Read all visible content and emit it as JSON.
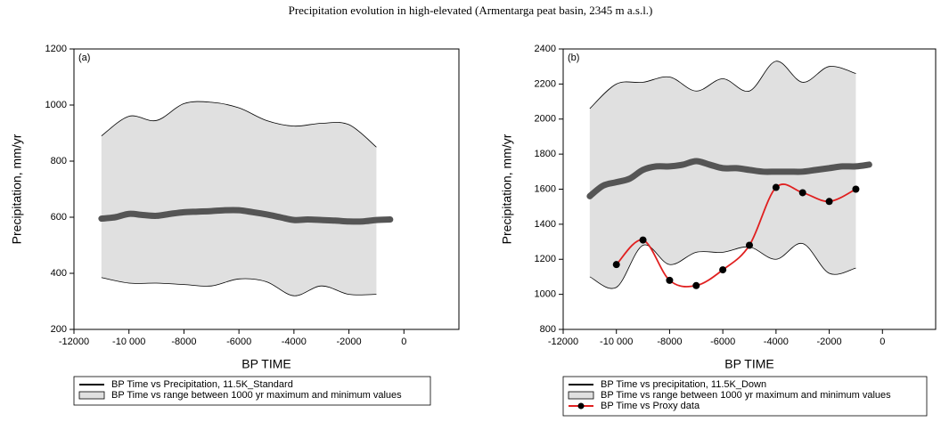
{
  "title": "Precipitation evolution in high-elevated (Armentarga peat basin, 2345 m a.s.l.)",
  "chart_data": [
    {
      "type": "line",
      "panel_label": "(a)",
      "xlabel": "BP TIME",
      "ylabel": "Precipitation, mm/yr",
      "xlim": [
        -12000,
        2000
      ],
      "ylim": [
        200,
        1200
      ],
      "xticks": [
        -12000,
        {
          "value": -10000,
          "label": "-10 000"
        },
        -8000,
        -6000,
        -4000,
        -2000,
        0
      ],
      "yticks": [
        200,
        400,
        600,
        800,
        1000,
        1200
      ],
      "series": [
        {
          "name": "BP Time vs Precipitation, 11.5K_Standard",
          "color": "#555555",
          "x": [
            -11000,
            -10500,
            -10000,
            -9500,
            -9000,
            -8500,
            -8000,
            -7500,
            -7000,
            -6500,
            -6000,
            -5500,
            -5000,
            -4500,
            -4000,
            -3500,
            -3000,
            -2500,
            -2000,
            -1500,
            -1000,
            -500
          ],
          "values": [
            595,
            600,
            612,
            608,
            605,
            612,
            618,
            620,
            622,
            625,
            625,
            618,
            610,
            600,
            590,
            592,
            590,
            588,
            585,
            585,
            590,
            592
          ]
        },
        {
          "name": "BP Time vs range between 1000 yr maximum and minimum values",
          "color": "#e0e0e0",
          "x": [
            -11000,
            -10000,
            -9000,
            -8000,
            -7000,
            -6000,
            -5000,
            -4000,
            -3000,
            -2000,
            -1000
          ],
          "upper": [
            890,
            960,
            945,
            1005,
            1010,
            990,
            945,
            925,
            935,
            930,
            850
          ],
          "lower": [
            385,
            365,
            365,
            360,
            355,
            380,
            370,
            320,
            355,
            325,
            325
          ]
        }
      ]
    },
    {
      "type": "line",
      "panel_label": "(b)",
      "xlabel": "BP TIME",
      "ylabel": "Precipitation, mm/yr",
      "xlim": [
        -12000,
        2000
      ],
      "ylim": [
        800,
        2400
      ],
      "xticks": [
        -12000,
        {
          "value": -10000,
          "label": "-10 000"
        },
        -8000,
        -6000,
        -4000,
        -2000,
        0
      ],
      "yticks": [
        800,
        1000,
        1200,
        1400,
        1600,
        1800,
        2000,
        2200,
        2400
      ],
      "series": [
        {
          "name": "BP Time vs precipitation, 11.5K_Down",
          "color": "#555555",
          "x": [
            -11000,
            -10500,
            -10000,
            -9500,
            -9000,
            -8500,
            -8000,
            -7500,
            -7000,
            -6500,
            -6000,
            -5500,
            -5000,
            -4500,
            -4000,
            -3500,
            -3000,
            -2500,
            -2000,
            -1500,
            -1000,
            -500
          ],
          "values": [
            1560,
            1620,
            1640,
            1660,
            1710,
            1730,
            1730,
            1740,
            1760,
            1740,
            1720,
            1720,
            1710,
            1700,
            1700,
            1700,
            1700,
            1710,
            1720,
            1730,
            1730,
            1740
          ]
        },
        {
          "name": "BP Time vs range between 1000 yr maximum and minimum values",
          "color": "#e0e0e0",
          "x": [
            -11000,
            -10000,
            -9000,
            -8000,
            -7000,
            -6000,
            -5000,
            -4000,
            -3000,
            -2000,
            -1000
          ],
          "upper": [
            2060,
            2200,
            2210,
            2240,
            2160,
            2230,
            2160,
            2330,
            2210,
            2300,
            2260
          ],
          "lower": [
            1100,
            1040,
            1280,
            1170,
            1240,
            1240,
            1270,
            1200,
            1290,
            1120,
            1150
          ]
        },
        {
          "name": "BP Time vs Proxy data",
          "color": "#e02020",
          "marker": "circle",
          "x": [
            -10000,
            -9000,
            -8000,
            -7000,
            -6000,
            -5000,
            -4000,
            -3000,
            -2000,
            -1000
          ],
          "values": [
            1170,
            1310,
            1080,
            1050,
            1140,
            1280,
            1610,
            1580,
            1530,
            1600
          ]
        }
      ]
    }
  ]
}
